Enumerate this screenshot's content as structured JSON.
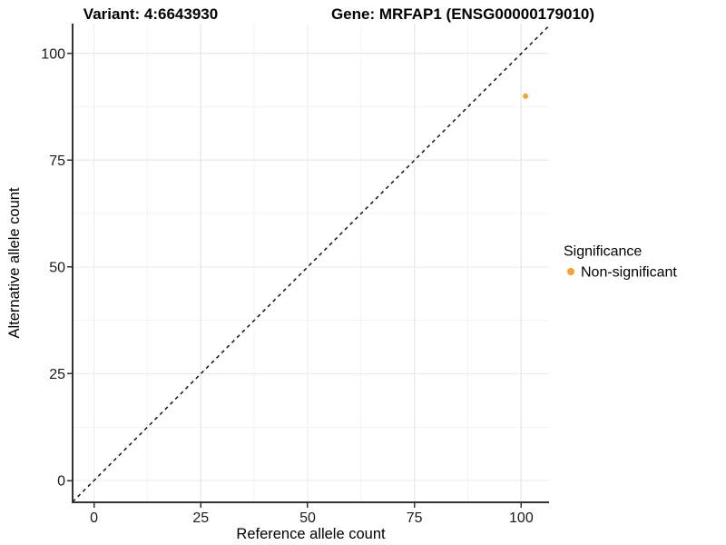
{
  "figure": {
    "titles": {
      "left": "Variant: 4:6643930",
      "right": "Gene: MRFAP1 (ENSG00000179010)"
    }
  },
  "chart_data": {
    "type": "scatter",
    "title": "Variant: 4:6643930   Gene: MRFAP1 (ENSG00000179010)",
    "xlabel": "Reference allele count",
    "ylabel": "Alternative allele count",
    "xlim": [
      -5,
      106.5
    ],
    "ylim": [
      -5.1,
      107
    ],
    "x_ticks": [
      0,
      25,
      50,
      75,
      100
    ],
    "y_ticks": [
      0,
      25,
      50,
      75,
      100
    ],
    "grid": {
      "major": true,
      "minor": true
    },
    "series": [
      {
        "name": "Non-significant",
        "color": "#F9A32B",
        "points": [
          {
            "x": 101,
            "y": 90
          }
        ]
      }
    ],
    "reference_line": {
      "slope": 1,
      "intercept": 0,
      "style": "dashed"
    },
    "legend": {
      "title": "Significance",
      "position": "right",
      "items": [
        {
          "label": "Non-significant",
          "color": "#F9A32B"
        }
      ]
    }
  },
  "colors": {
    "background": "#FFFFFF",
    "grid_major": "#EBEBEB",
    "grid_minor": "#F4F4F4",
    "axis_line": "#333333",
    "tick_mark": "#333333",
    "text": "#000000",
    "reference_line": "#111111",
    "point": "#F9A32B"
  }
}
